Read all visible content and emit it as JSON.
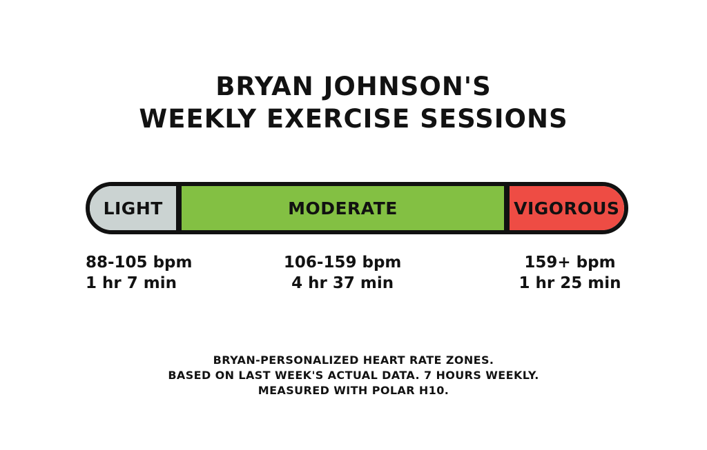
{
  "title": {
    "line1": "BRYAN JOHNSON'S",
    "line2": "WEEKLY EXERCISE SESSIONS"
  },
  "zones": [
    {
      "name": "LIGHT",
      "bpm": "88-105 bpm",
      "duration": "1 hr 7 min",
      "color": "#cbd3d2",
      "width_pct": 16.2
    },
    {
      "name": "MODERATE",
      "bpm": "106-159 bpm",
      "duration": "4 hr 37 min",
      "color": "#83c043",
      "width_pct": 62.3
    },
    {
      "name": "VIGOROUS",
      "bpm": "159+ bpm",
      "duration": "1 hr 25 min",
      "color": "#ee4c44",
      "width_pct": 21.5
    }
  ],
  "footer": {
    "line1": "BRYAN-PERSONALIZED HEART RATE ZONES.",
    "line2": "BASED ON LAST WEEK'S ACTUAL DATA. 7 HOURS WEEKLY.",
    "line3": "MEASURED WITH POLAR H10."
  },
  "style": {
    "outline_color": "#111111",
    "background_color": "#ffffff"
  },
  "chart_data": {
    "type": "bar",
    "subtype": "proportional-stacked-horizontal",
    "title": "BRYAN JOHNSON'S WEEKLY EXERCISE SESSIONS",
    "categories": [
      "LIGHT",
      "MODERATE",
      "VIGOROUS"
    ],
    "series": [
      {
        "name": "duration_minutes",
        "values": [
          67,
          277,
          85
        ]
      }
    ],
    "bpm_ranges": [
      "88-105 bpm",
      "106-159 bpm",
      "159+ bpm"
    ],
    "durations": [
      "1 hr 7 min",
      "4 hr 37 min",
      "1 hr 25 min"
    ],
    "segment_colors": [
      "#cbd3d2",
      "#83c043",
      "#ee4c44"
    ],
    "total": "7 hours weekly",
    "annotations": [
      "BRYAN-PERSONALIZED HEART RATE ZONES.",
      "BASED ON LAST WEEK'S ACTUAL DATA. 7 HOURS WEEKLY.",
      "MEASURED WITH POLAR H10."
    ],
    "legend_position": "none",
    "grid": false
  }
}
